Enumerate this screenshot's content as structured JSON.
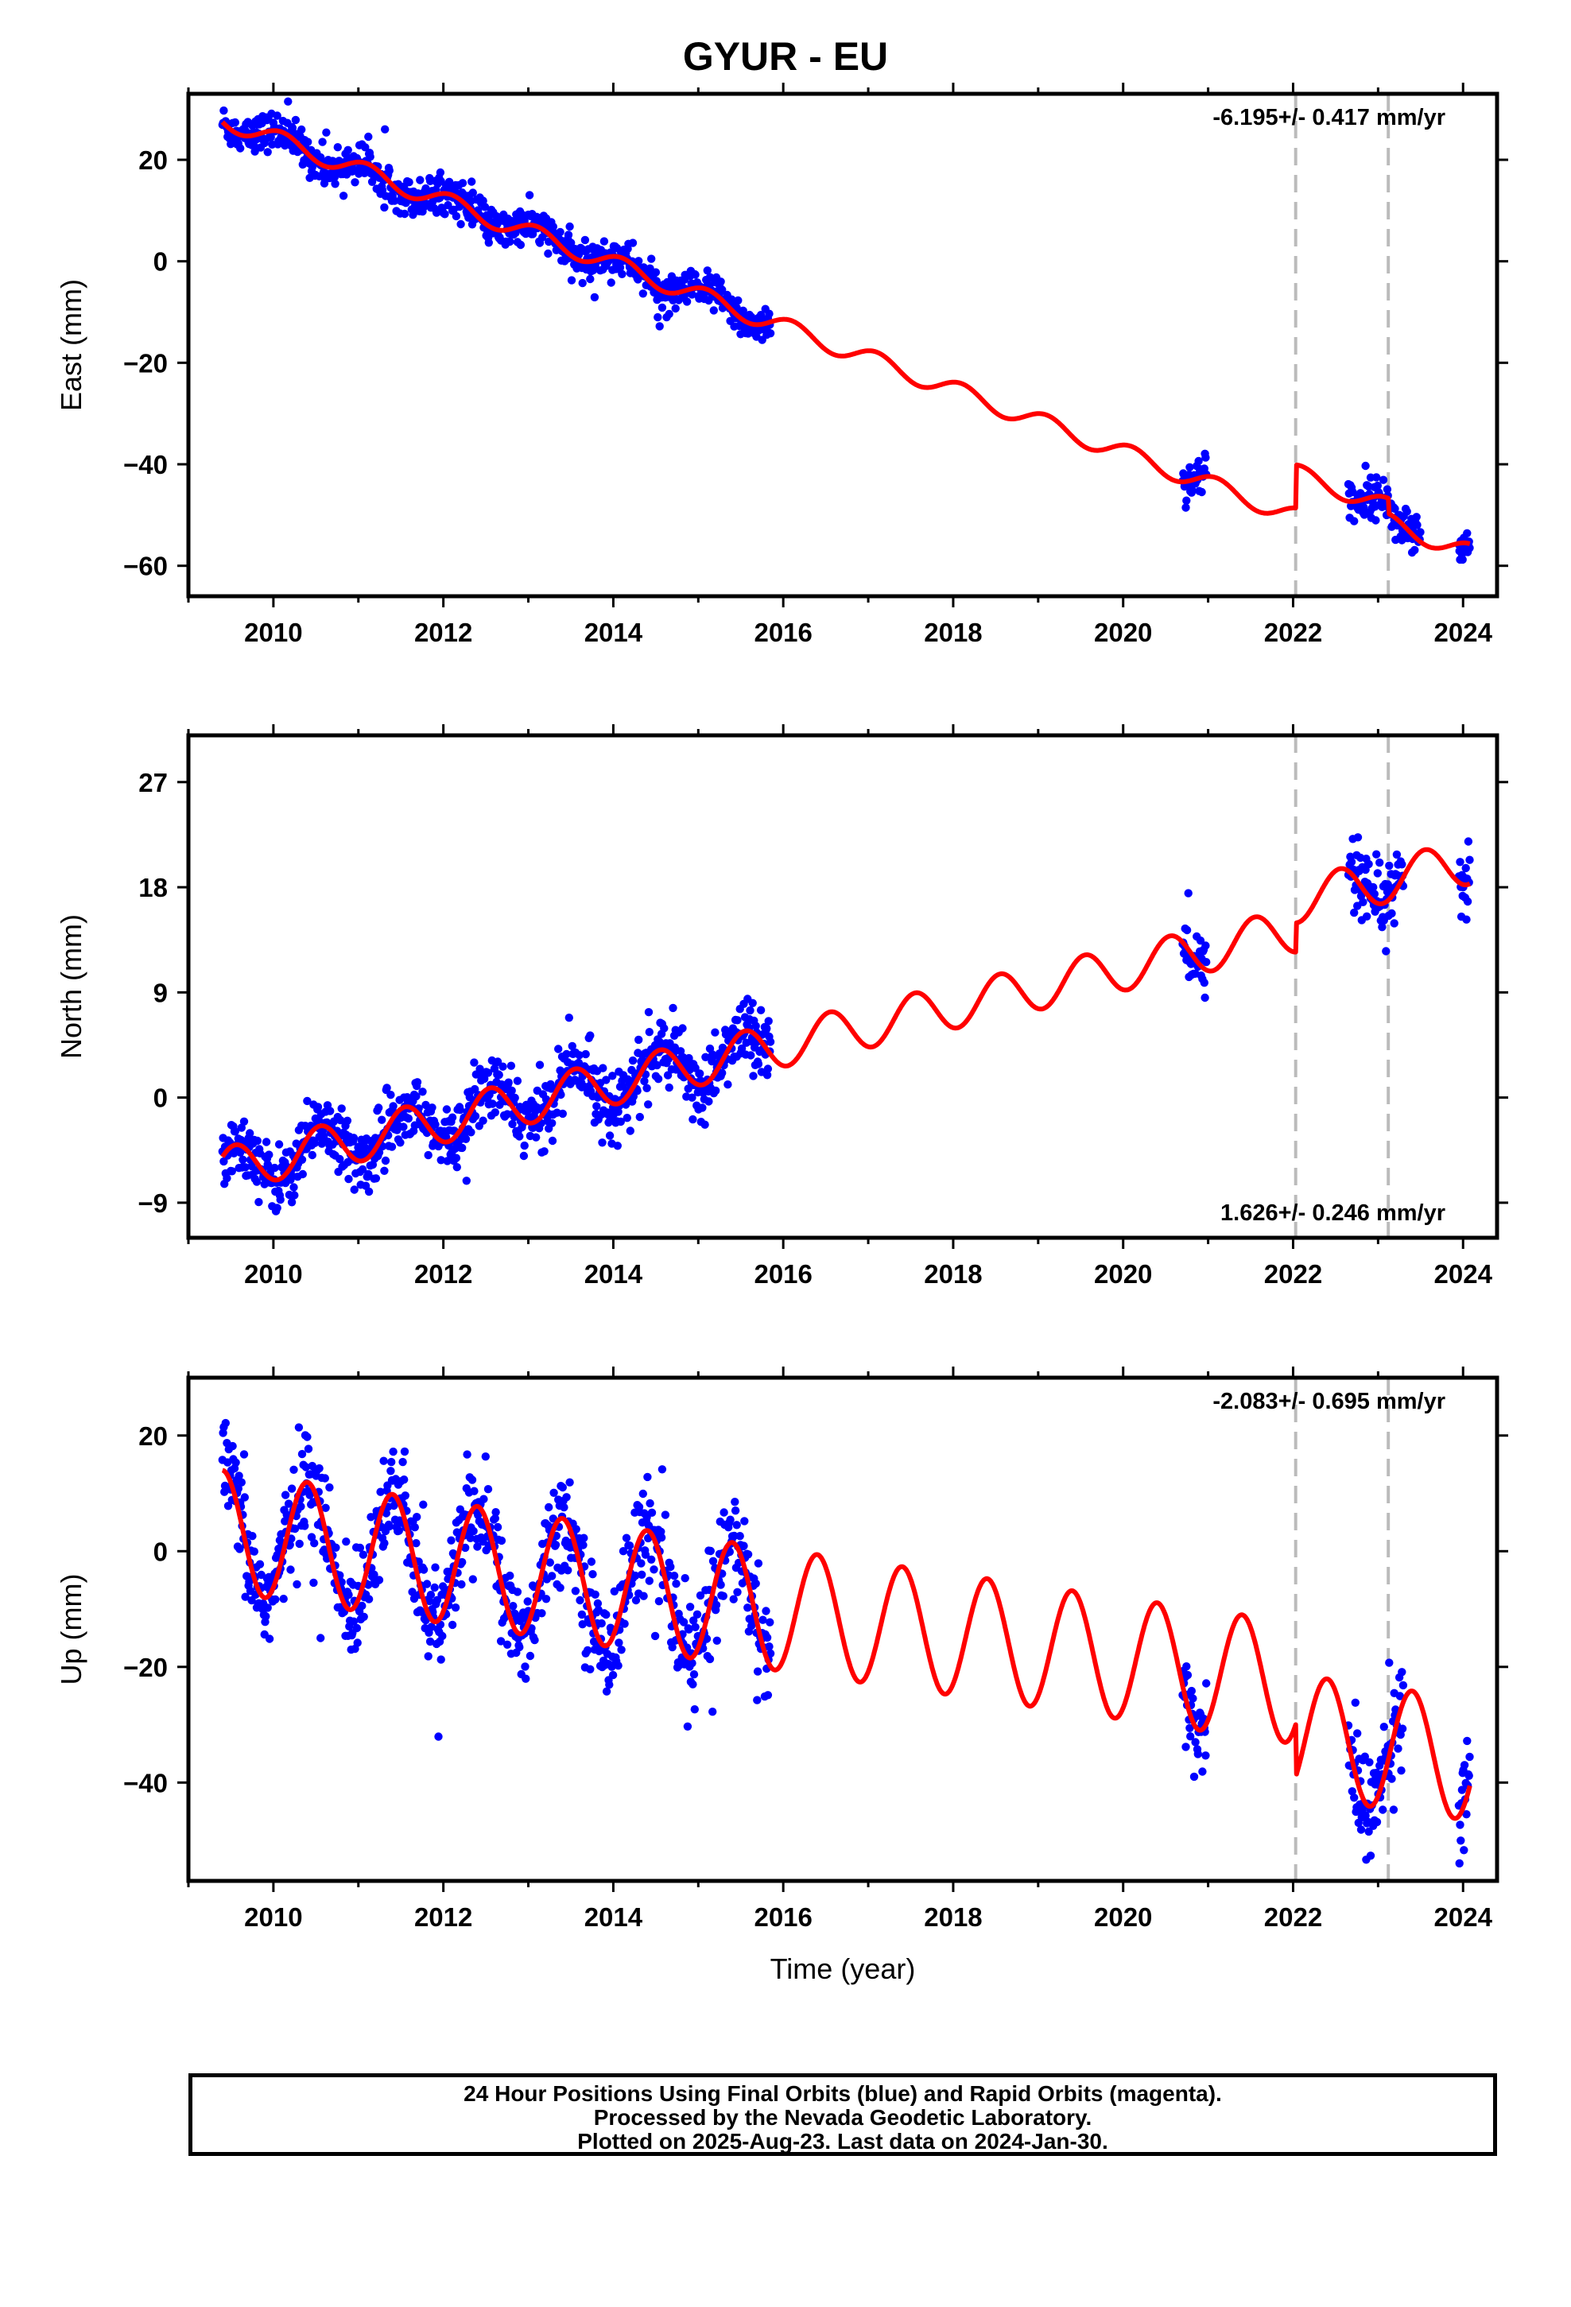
{
  "title": "GYUR - EU",
  "colors": {
    "data": "#0000ff",
    "model": "#ff0000",
    "break": "#bbbbbb",
    "frame": "#000000"
  },
  "footer": {
    "line1": "24 Hour Positions Using Final Orbits (blue) and Rapid Orbits (magenta).",
    "line2": "Processed by the Nevada Geodetic Laboratory.",
    "line3": "Plotted on 2025-Aug-23. Last data on 2024-Jan-30."
  },
  "chart_data": [
    {
      "type": "scatter",
      "ylabel": "East (mm)",
      "xlabel": "",
      "rate_label": "-6.195+/- 0.417 mm/yr",
      "rate_label_position": "top-right",
      "xlim": [
        2009.0,
        2024.4
      ],
      "ylim": [
        -66,
        33
      ],
      "x_ticks": [
        "2010",
        "2012",
        "2014",
        "2016",
        "2018",
        "2020",
        "2022",
        "2024"
      ],
      "y_ticks": [
        20,
        0,
        -20,
        -40,
        -60
      ],
      "breaks": [
        2022.03,
        2023.12
      ],
      "data_segments": [
        [
          2009.4,
          2015.85
        ],
        [
          2020.7,
          2020.98
        ],
        [
          2022.65,
          2023.5
        ],
        [
          2023.95,
          2024.08
        ]
      ],
      "model": {
        "ref_year": 2009.4,
        "offset": 28,
        "rate": -6.195,
        "annual_amp": 1.8,
        "annual_phase": 0.55,
        "steps": [
          {
            "year": 2022.03,
            "size": 8.5
          },
          {
            "year": 2023.12,
            "size": -3.0
          }
        ]
      },
      "scatter_sigma": 1.8,
      "series": [
        {
          "name": "Final Orbits",
          "color": "#0000ff",
          "style": "points"
        },
        {
          "name": "Model",
          "color": "#ff0000",
          "style": "line"
        }
      ]
    },
    {
      "type": "scatter",
      "ylabel": "North (mm)",
      "xlabel": "",
      "rate_label": "1.626+/- 0.246 mm/yr",
      "rate_label_position": "bottom-right",
      "xlim": [
        2009.0,
        2024.4
      ],
      "ylim": [
        -12,
        31
      ],
      "x_ticks": [
        "2010",
        "2012",
        "2014",
        "2016",
        "2018",
        "2020",
        "2022",
        "2024"
      ],
      "y_ticks": [
        27,
        18,
        9,
        0,
        -9
      ],
      "breaks": [
        2022.03,
        2023.12
      ],
      "data_segments": [
        [
          2009.4,
          2015.85
        ],
        [
          2020.7,
          2020.98
        ],
        [
          2022.65,
          2023.3
        ],
        [
          2023.95,
          2024.08
        ]
      ],
      "model": {
        "ref_year": 2009.4,
        "offset": -6.2,
        "rate": 1.626,
        "annual_amp": 1.9,
        "annual_phase": 0.1,
        "steps": [
          {
            "year": 2022.03,
            "size": 2.5
          },
          {
            "year": 2023.12,
            "size": 0.0
          }
        ]
      },
      "scatter_sigma": 1.4,
      "series": [
        {
          "name": "Final Orbits",
          "color": "#0000ff",
          "style": "points"
        },
        {
          "name": "Model",
          "color": "#ff0000",
          "style": "line"
        }
      ]
    },
    {
      "type": "scatter",
      "ylabel": "Up (mm)",
      "xlabel": "Time (year)",
      "rate_label": "-2.083+/- 0.695 mm/yr",
      "rate_label_position": "top-right",
      "xlim": [
        2009.0,
        2024.4
      ],
      "ylim": [
        -57,
        30
      ],
      "x_ticks": [
        "2010",
        "2012",
        "2014",
        "2016",
        "2018",
        "2020",
        "2022",
        "2024"
      ],
      "y_ticks": [
        20,
        0,
        -20,
        -40
      ],
      "breaks": [
        2022.03,
        2023.12
      ],
      "data_segments": [
        [
          2009.4,
          2015.85
        ],
        [
          2020.7,
          2020.98
        ],
        [
          2022.65,
          2023.3
        ],
        [
          2023.95,
          2024.08
        ]
      ],
      "model": {
        "ref_year": 2009.4,
        "offset": 3.5,
        "rate": -2.083,
        "annual_amp": 10.5,
        "annual_phase": 0.25,
        "steps": [
          {
            "year": 2022.03,
            "size": -9.0
          },
          {
            "year": 2023.12,
            "size": 0.0
          }
        ]
      },
      "scatter_sigma": 4.5,
      "series": [
        {
          "name": "Final Orbits",
          "color": "#0000ff",
          "style": "points"
        },
        {
          "name": "Model",
          "color": "#ff0000",
          "style": "line"
        }
      ]
    }
  ]
}
